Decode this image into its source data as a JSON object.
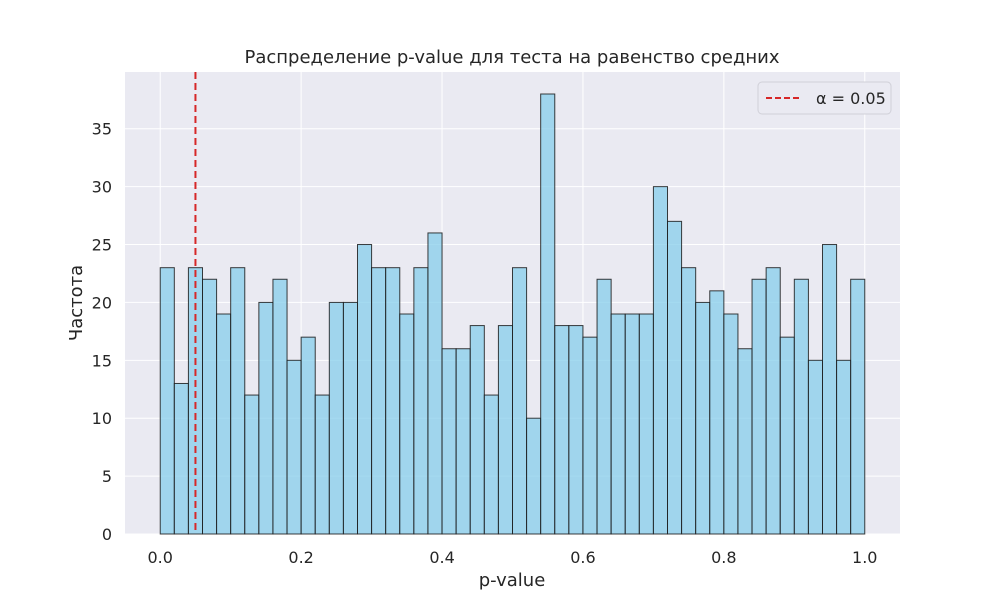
{
  "chart_data": {
    "type": "bar",
    "title": "Распределение p-value для теста на равенство средних",
    "xlabel": "p-value",
    "ylabel": "Частота",
    "xlim": [
      -0.05,
      1.05
    ],
    "ylim": [
      0,
      39.9
    ],
    "xticks": [
      0.0,
      0.2,
      0.4,
      0.6,
      0.8,
      1.0
    ],
    "xtick_labels": [
      "0.0",
      "0.2",
      "0.4",
      "0.6",
      "0.8",
      "1.0"
    ],
    "yticks": [
      0,
      5,
      10,
      15,
      20,
      25,
      30,
      35
    ],
    "ytick_labels": [
      "0",
      "5",
      "10",
      "15",
      "20",
      "25",
      "30",
      "35"
    ],
    "grid": true,
    "legend_position": "top-right",
    "bin_start": 0.0,
    "bin_width": 0.02,
    "values": [
      23,
      13,
      23,
      22,
      19,
      23,
      12,
      20,
      22,
      15,
      17,
      12,
      20,
      20,
      25,
      23,
      23,
      19,
      23,
      26,
      16,
      16,
      18,
      12,
      18,
      23,
      10,
      38,
      18,
      18,
      17,
      22,
      19,
      19,
      19,
      30,
      27,
      23,
      20,
      21,
      19,
      16,
      22,
      23,
      17,
      22,
      15,
      25,
      15,
      22
    ],
    "bar_color": "#87CEEB",
    "bar_edge_color": "#1a1a1a",
    "threshold": {
      "value": 0.05,
      "label": "α = 0.05",
      "color": "#d62728"
    },
    "colors": {
      "plot_background": "#EAEAF2",
      "grid": "#ffffff"
    }
  }
}
